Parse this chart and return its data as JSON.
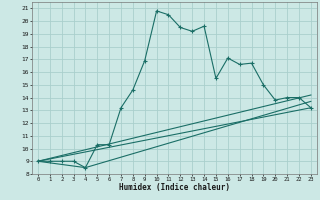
{
  "title": "",
  "xlabel": "Humidex (Indice chaleur)",
  "ylabel": "",
  "bg_color": "#cce8e5",
  "line_color": "#1a6e66",
  "grid_color": "#aacfcc",
  "xlim": [
    -0.5,
    23.5
  ],
  "ylim": [
    8,
    21.5
  ],
  "xticks": [
    0,
    1,
    2,
    3,
    4,
    5,
    6,
    7,
    8,
    9,
    10,
    11,
    12,
    13,
    14,
    15,
    16,
    17,
    18,
    19,
    20,
    21,
    22,
    23
  ],
  "yticks": [
    8,
    9,
    10,
    11,
    12,
    13,
    14,
    15,
    16,
    17,
    18,
    19,
    20,
    21
  ],
  "line1_x": [
    0,
    1,
    2,
    3,
    4,
    5,
    6,
    7,
    8,
    9,
    10,
    11,
    12,
    13,
    14,
    15,
    16,
    17,
    18,
    19,
    20,
    21,
    22,
    23
  ],
  "line1_y": [
    9.0,
    9.0,
    9.0,
    9.0,
    8.5,
    10.3,
    10.3,
    13.2,
    14.6,
    16.9,
    20.8,
    20.5,
    19.5,
    19.2,
    19.6,
    15.5,
    17.1,
    16.6,
    16.7,
    15.0,
    13.8,
    14.0,
    14.0,
    13.2
  ],
  "line2_x": [
    0,
    23
  ],
  "line2_y": [
    9.0,
    13.2
  ],
  "line3_x": [
    0,
    23
  ],
  "line3_y": [
    9.0,
    14.2
  ],
  "line4_x": [
    0,
    4,
    23
  ],
  "line4_y": [
    9.0,
    8.5,
    13.7
  ]
}
